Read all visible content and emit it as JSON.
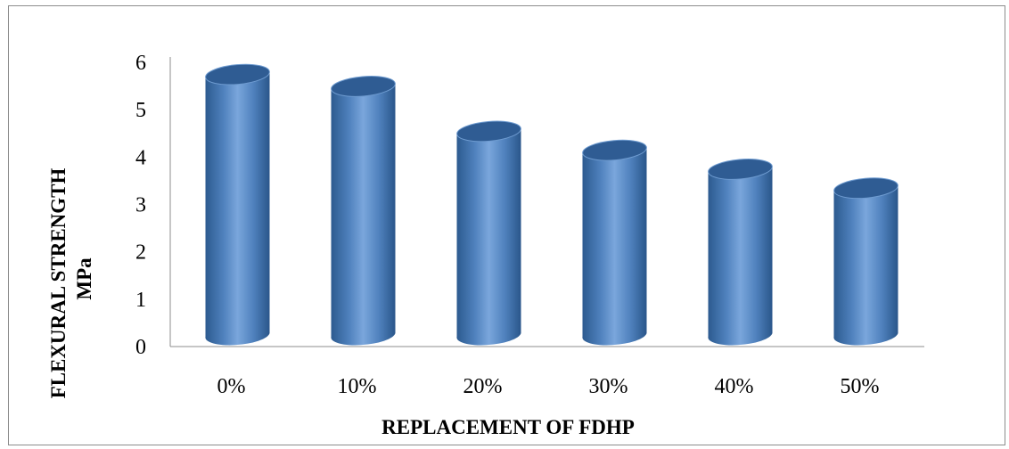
{
  "chart_data": {
    "type": "bar",
    "style": "3d-cylinder",
    "categories": [
      "0%",
      "10%",
      "20%",
      "30%",
      "40%",
      "50%"
    ],
    "values": [
      5.8,
      5.55,
      4.6,
      4.2,
      3.8,
      3.4
    ],
    "ylim": [
      0,
      6
    ],
    "yticks": [
      0,
      1,
      2,
      3,
      4,
      5,
      6
    ],
    "xlabel": "REPLACEMENT OF FDHP",
    "ylabel_line1": "FLEXURAL  STRENGTH",
    "ylabel_line2": "MPa",
    "grid": false,
    "legend": "none",
    "colors": {
      "bar": "#4f81bd",
      "bar_light": "#8db3e2",
      "bar_dark": "#2c5a8f",
      "cap": "#2f5c93",
      "cap_rim": "#6e9bd0",
      "axis": "#8c8c8c"
    }
  }
}
